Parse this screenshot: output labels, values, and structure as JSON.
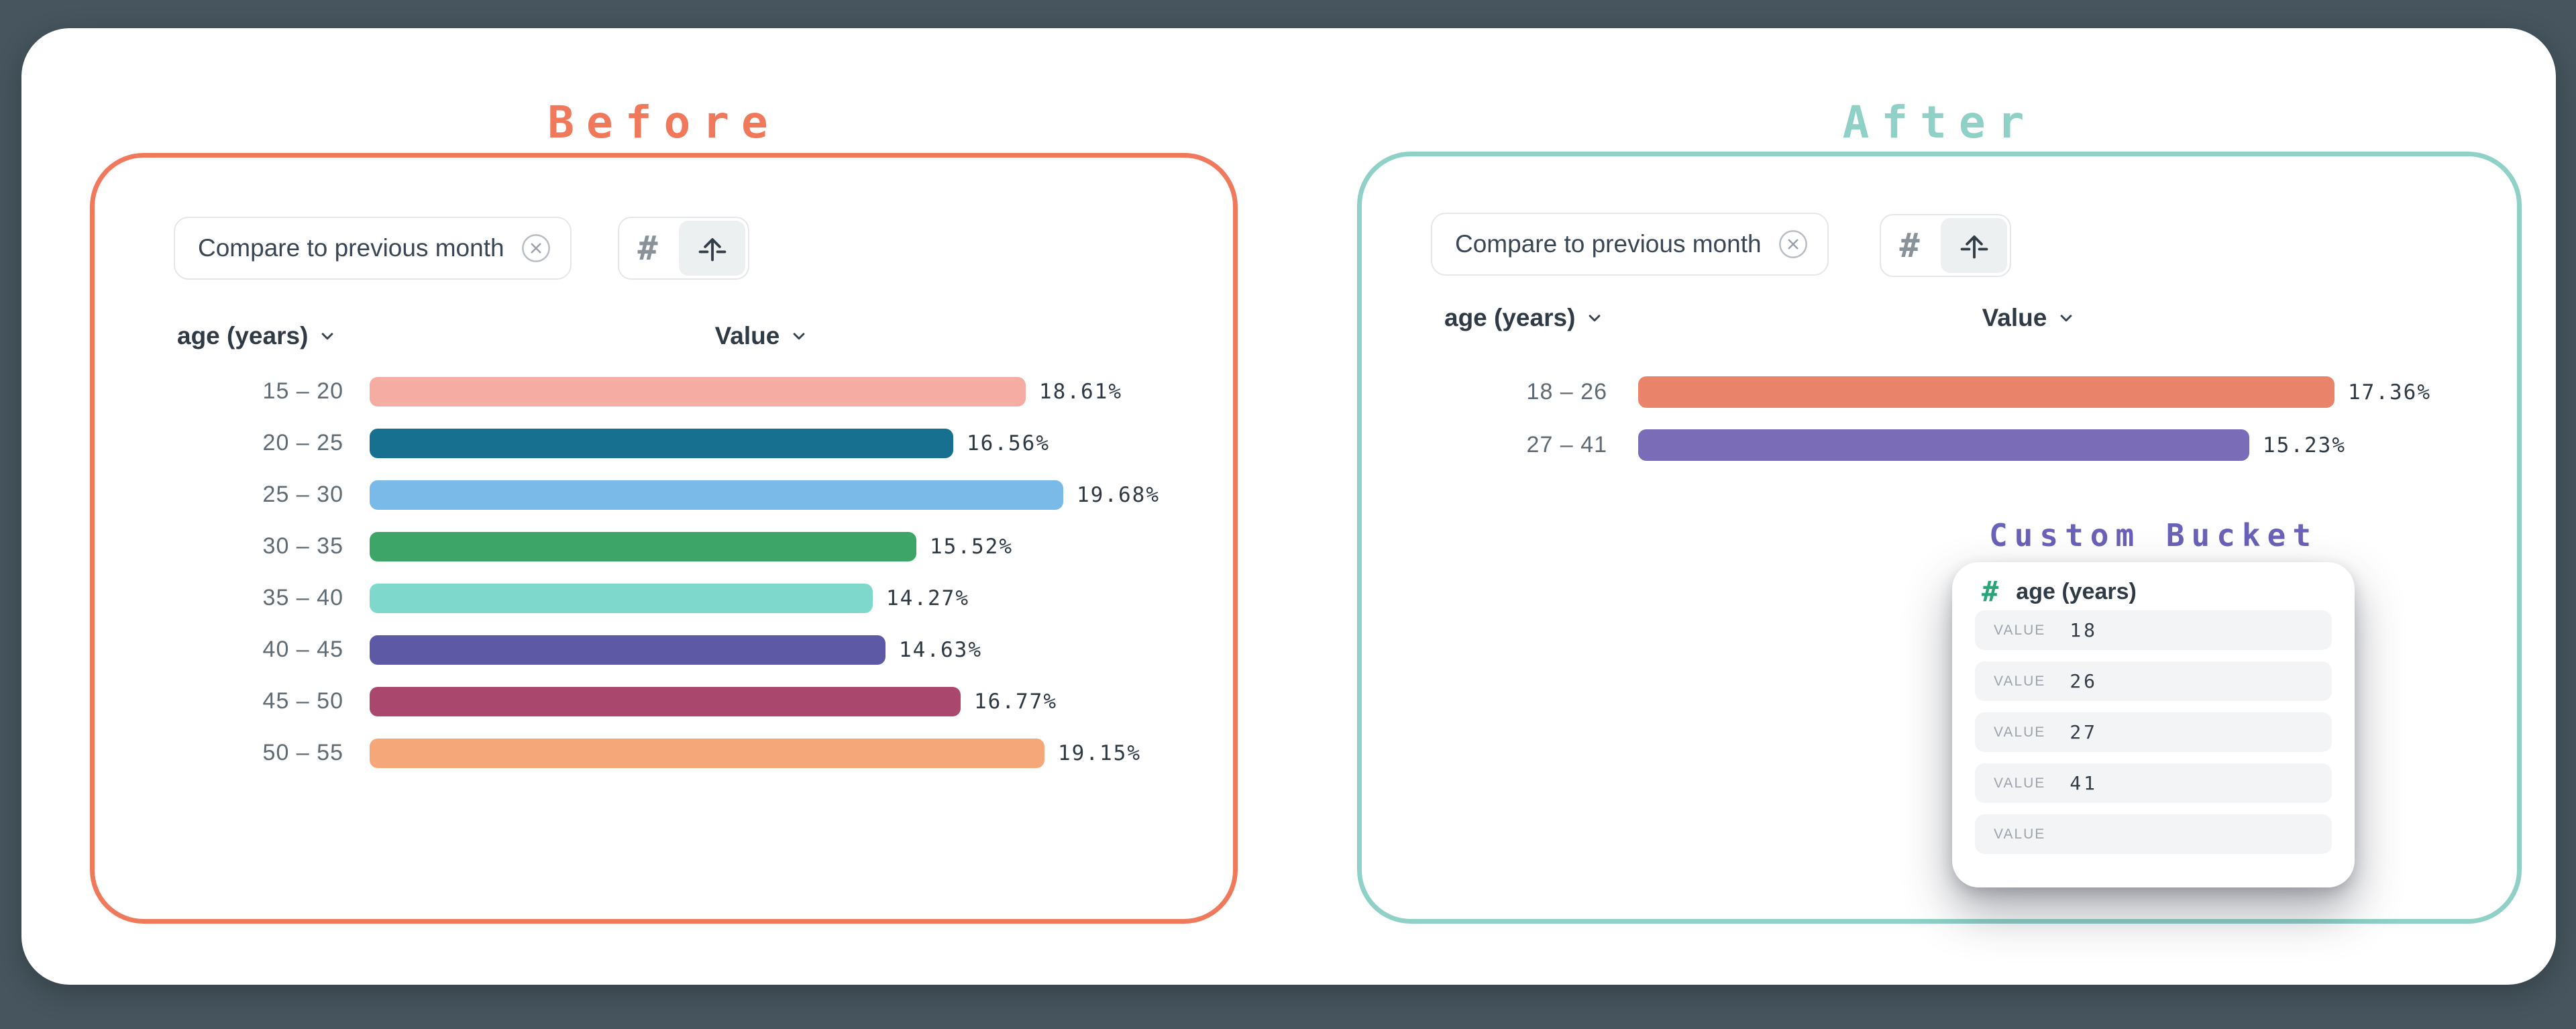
{
  "page": {
    "background_color": "#46555E",
    "card_color": "#FFFFFF"
  },
  "before": {
    "title": "Before",
    "accent_color": "#F0795B",
    "toolbar": {
      "chip_label": "Compare to previous month",
      "dismiss_icon": "circle-x-icon",
      "view_toggle": [
        {
          "icon": "hash-icon",
          "selected": false
        },
        {
          "icon": "axis-scale-arrow-icon",
          "selected": true
        }
      ]
    },
    "columns": {
      "dimension": "age (years)",
      "value": "Value"
    }
  },
  "after": {
    "title": "After",
    "accent_color": "#8FD0C7",
    "toolbar": {
      "chip_label": "Compare to previous month",
      "dismiss_icon": "circle-x-icon",
      "view_toggle": [
        {
          "icon": "hash-icon",
          "selected": false
        },
        {
          "icon": "axis-scale-arrow-icon",
          "selected": true
        }
      ]
    },
    "columns": {
      "dimension": "age (years)",
      "value": "Value"
    },
    "custom_bucket": {
      "title": "Custom Bucket",
      "accent_color": "#6A61B8",
      "field_icon": "hash-icon",
      "field_name": "age (years)",
      "rows": [
        {
          "label": "VALUE",
          "value": "18"
        },
        {
          "label": "VALUE",
          "value": "26"
        },
        {
          "label": "VALUE",
          "value": "27"
        },
        {
          "label": "VALUE",
          "value": "41"
        },
        {
          "label": "VALUE",
          "value": ""
        }
      ]
    }
  },
  "chart_data": [
    {
      "id": "before-chart",
      "type": "bar",
      "orientation": "horizontal",
      "title": "Before",
      "xlabel": "Value",
      "ylabel": "age (years)",
      "categories": [
        "15 – 20",
        "20 – 25",
        "25 – 30",
        "30 – 35",
        "35 – 40",
        "40 – 45",
        "45 – 50",
        "50 – 55"
      ],
      "values": [
        18.61,
        16.56,
        19.68,
        15.52,
        14.27,
        14.63,
        16.77,
        19.15
      ],
      "labels": [
        "18.61%",
        "16.56%",
        "19.68%",
        "15.52%",
        "14.27%",
        "14.63%",
        "16.77%",
        "19.15%"
      ],
      "colors": [
        "#F5ACA2",
        "#17708F",
        "#7ABAE8",
        "#3CA567",
        "#7ED9CC",
        "#5E59A5",
        "#A9486C",
        "#F6A77A"
      ],
      "value_suffix": "%"
    },
    {
      "id": "after-chart",
      "type": "bar",
      "orientation": "horizontal",
      "title": "After",
      "xlabel": "Value",
      "ylabel": "age (years)",
      "categories": [
        "18 – 26",
        "27 – 41"
      ],
      "values": [
        17.36,
        15.23
      ],
      "labels": [
        "17.36%",
        "15.23%"
      ],
      "colors": [
        "#E9846B",
        "#7A6CB6"
      ],
      "value_suffix": "%"
    }
  ]
}
